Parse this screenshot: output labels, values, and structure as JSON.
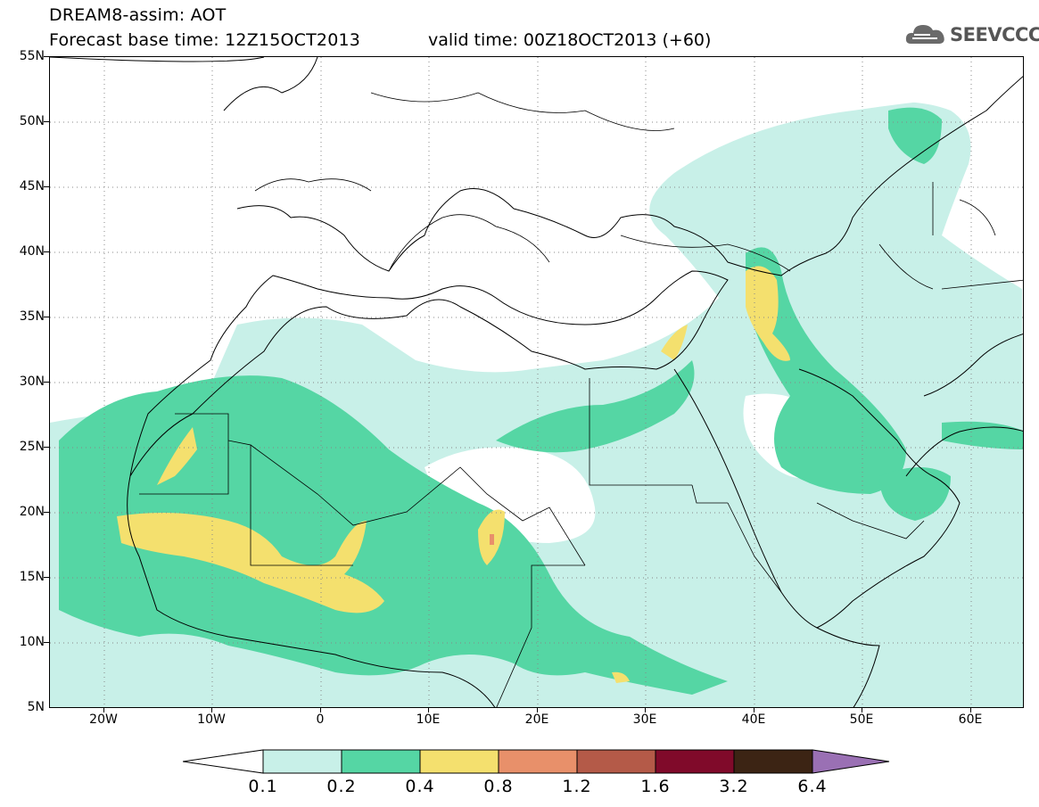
{
  "header": {
    "line1": "DREAM8-assim: AOT",
    "line2": "Forecast base time: 12Z15OCT2013",
    "line3": "valid time: 00Z18OCT2013 (+60)"
  },
  "logo": {
    "text": "SEEVCCC",
    "icon": "cloud-icon"
  },
  "map": {
    "projection": "lat-lon",
    "lat_range": [
      5,
      55
    ],
    "lon_range": [
      -25,
      65
    ],
    "lat_labels": [
      "55N",
      "50N",
      "45N",
      "40N",
      "35N",
      "30N",
      "25N",
      "20N",
      "15N",
      "10N",
      "5N"
    ],
    "lon_labels": [
      "20W",
      "10W",
      "0",
      "10E",
      "20E",
      "30E",
      "40E",
      "50E",
      "60E"
    ],
    "grid": "dotted"
  },
  "colorbar": {
    "levels": [
      "0.1",
      "0.2",
      "0.4",
      "0.8",
      "1.2",
      "1.6",
      "3.2",
      "6.4"
    ],
    "colors": [
      "#c8f0e8",
      "#55d6a4",
      "#f4e06e",
      "#e8906a",
      "#b45a48",
      "#800a2a",
      "#3c2414",
      "#9a70b4"
    ],
    "under_color": "#ffffff"
  },
  "colors": {
    "aot_0_1": "#c8f0e8",
    "aot_0_2": "#55d6a4",
    "aot_0_4": "#f4e06e",
    "aot_0_8": "#e8906a"
  }
}
